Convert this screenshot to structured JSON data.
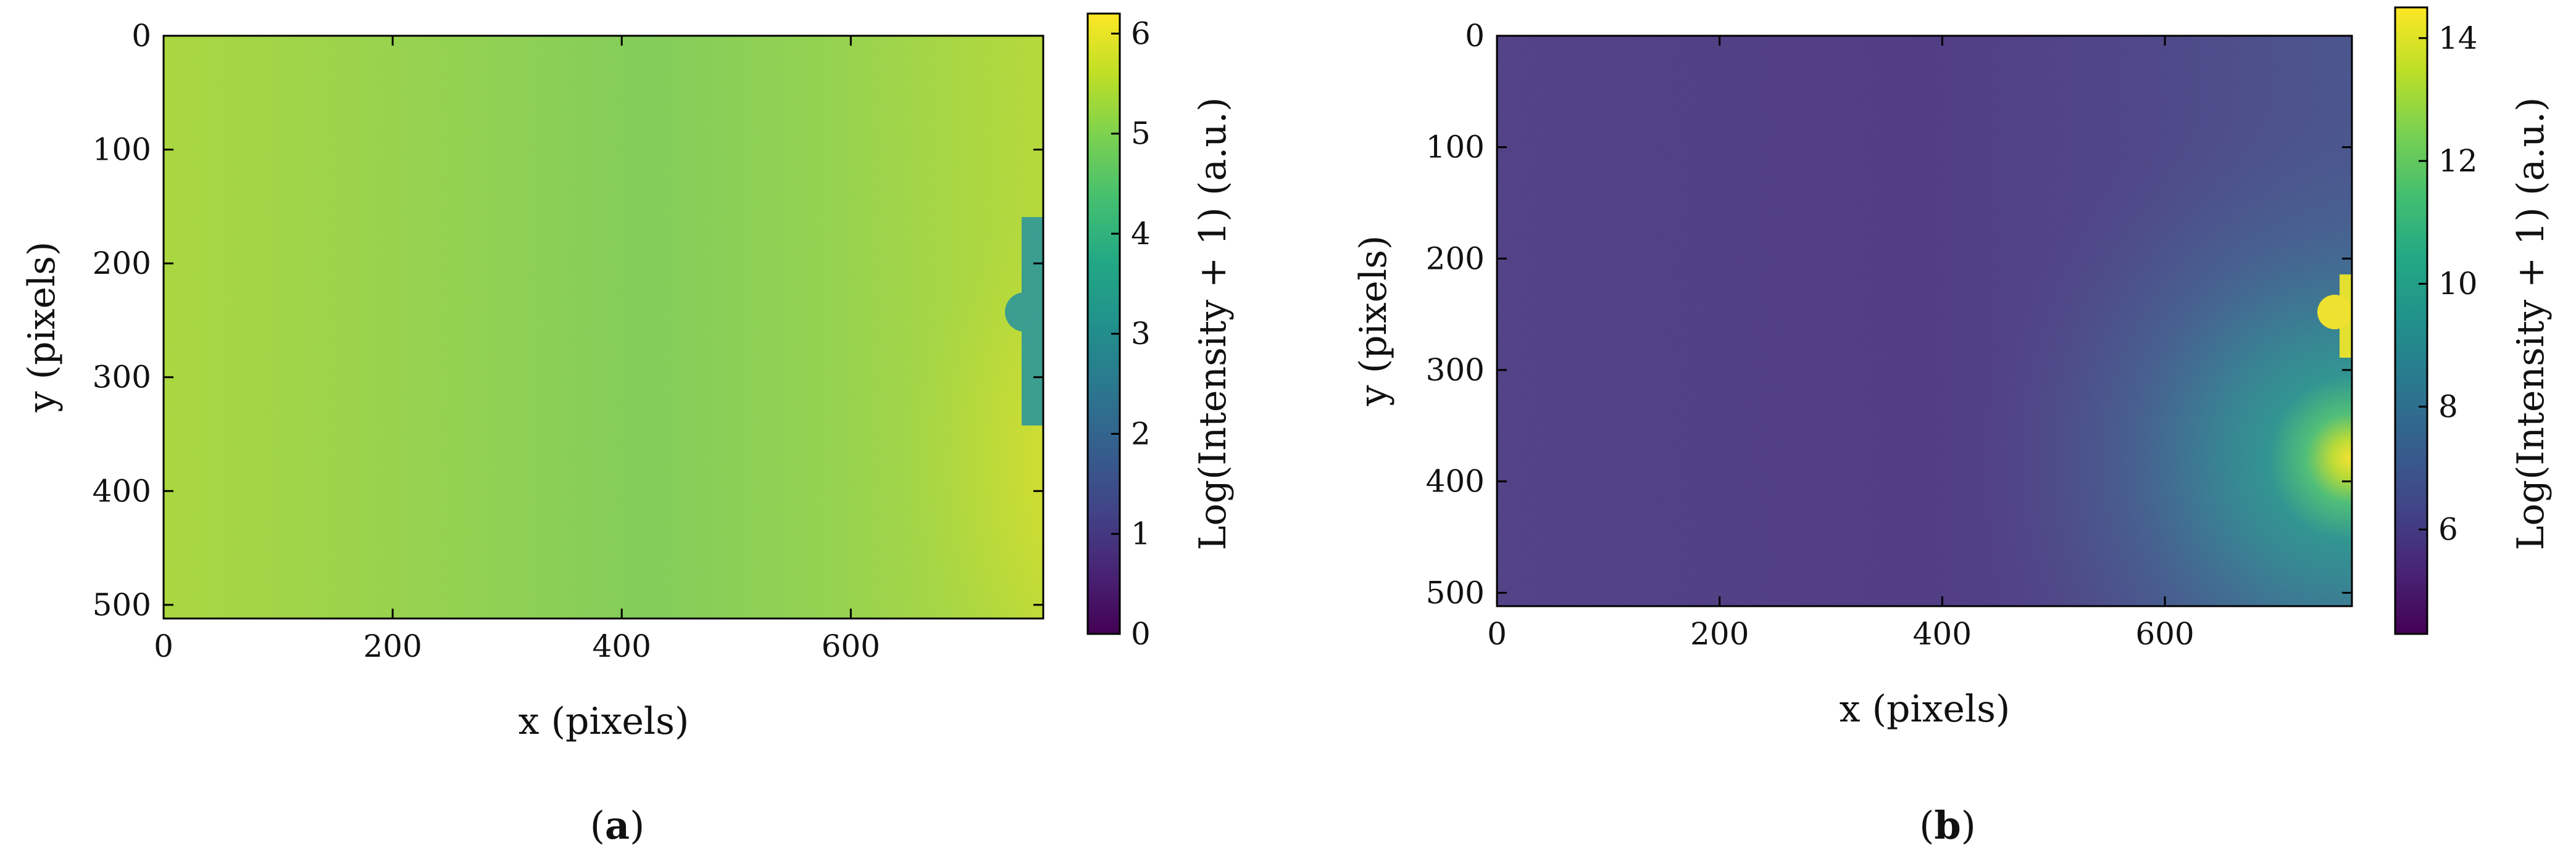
{
  "chart_data": [
    {
      "type": "heatmap",
      "panel_label": "a",
      "xlabel": "x (pixels)",
      "ylabel": "y (pixels)",
      "xlim": [
        0,
        768
      ],
      "ylim": [
        512,
        0
      ],
      "xticks": [
        0,
        200,
        400,
        600
      ],
      "yticks": [
        0,
        100,
        200,
        300,
        400,
        500
      ],
      "grid": false,
      "colormap": "viridis",
      "colorbar": {
        "label": "Log(Intensity + 1) (a.u.)",
        "range": [
          0,
          6.2
        ],
        "ticks": [
          0,
          1,
          2,
          3,
          4,
          5,
          6
        ]
      },
      "features": {
        "background_level": 4.9,
        "bright_halo": {
          "center_x": 745,
          "center_y": 250,
          "peak_level": 5.9
        },
        "beam_stop": {
          "x": 752,
          "y_range": [
            170,
            330
          ],
          "level": 3.2
        }
      }
    },
    {
      "type": "heatmap",
      "panel_label": "b",
      "xlabel": "x (pixels)",
      "ylabel": "y (pixels)",
      "xlim": [
        0,
        768
      ],
      "ylim": [
        512,
        0
      ],
      "xticks": [
        0,
        200,
        400,
        600
      ],
      "yticks": [
        0,
        100,
        200,
        300,
        400,
        500
      ],
      "grid": false,
      "colormap": "viridis",
      "colorbar": {
        "label": "Log(Intensity + 1) (a.u.)",
        "range": [
          4.3,
          14.5
        ],
        "ticks": [
          6,
          8,
          10,
          12,
          14
        ]
      },
      "features": {
        "background_level": 5.7,
        "bright_halo": {
          "center_x": 760,
          "center_y": 250,
          "peak_level": 14.5
        },
        "beam_stop": {
          "x": 752,
          "y_range": [
            215,
            285
          ],
          "level": 14
        }
      }
    }
  ]
}
